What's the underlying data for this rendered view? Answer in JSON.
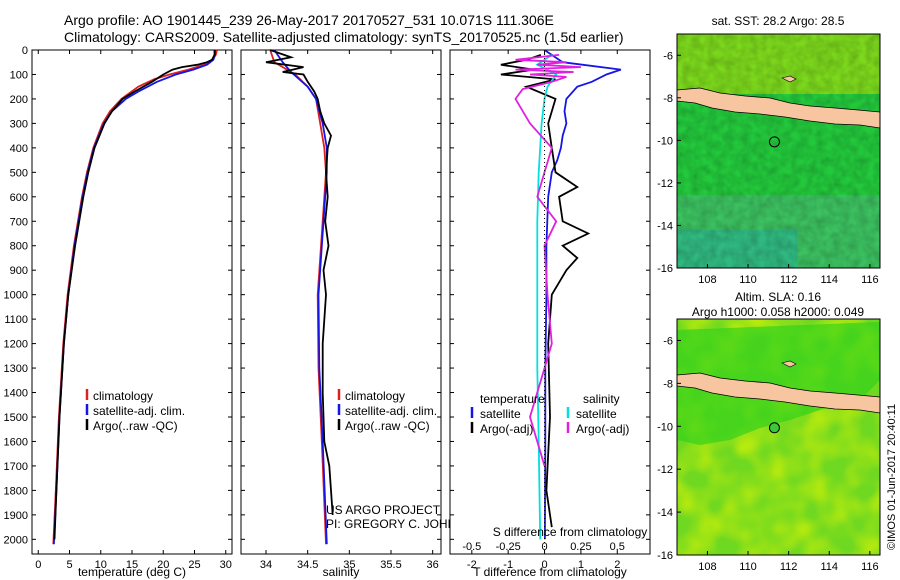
{
  "header": {
    "line1": "Argo profile: AO 1901445_239 26-May-2017 20170527_531 10.071S 111.306E",
    "line2": "Climatology: CARS2009. Satellite-adjusted climatology: synTS_20170525.nc (1.5d earlier)"
  },
  "colors": {
    "climatology": "#e02020",
    "satellite": "#1515e6",
    "argo": "#000000",
    "satellite_s": "#00e0e0",
    "argo_s": "#e020e0"
  },
  "chart_data": [
    {
      "type": "line",
      "xlabel": "temperature (deg C)",
      "ylabel": "",
      "xlim": [
        -1,
        31
      ],
      "ylim": [
        2060,
        0
      ],
      "y_inverted": true,
      "xticks": [
        0,
        5,
        10,
        15,
        20,
        25,
        30
      ],
      "yticks": [
        0,
        100,
        200,
        300,
        400,
        500,
        600,
        700,
        800,
        900,
        1000,
        1100,
        1200,
        1300,
        1400,
        1500,
        1600,
        1700,
        1800,
        1900,
        2000
      ],
      "legend": [
        "climatology",
        "satellite-adj. clim.",
        "Argo(..raw -QC)"
      ],
      "legend_placement": "lower-center",
      "series": [
        {
          "name": "climatology",
          "color": "#e02020",
          "y": [
            0,
            20,
            40,
            60,
            80,
            100,
            120,
            150,
            200,
            250,
            300,
            400,
            500,
            600,
            800,
            1000,
            1200,
            1500,
            1800,
            2020
          ],
          "x": [
            28.6,
            28.4,
            27.8,
            26.5,
            24,
            21,
            18.5,
            16,
            13.3,
            11.5,
            10.3,
            8.8,
            7.8,
            7.0,
            5.7,
            4.7,
            4.0,
            3.3,
            2.8,
            2.4
          ]
        },
        {
          "name": "satellite-adj. clim.",
          "color": "#1515e6",
          "y": [
            0,
            20,
            40,
            60,
            80,
            100,
            130,
            170,
            200,
            250,
            300,
            400,
            500,
            600,
            800,
            1000,
            1200,
            1500,
            1800,
            2020
          ],
          "x": [
            28.3,
            28.3,
            28.0,
            27.0,
            24.8,
            22,
            19,
            16,
            14,
            11.8,
            10.5,
            8.9,
            7.9,
            7.1,
            5.8,
            4.8,
            4.1,
            3.4,
            2.9,
            2.5
          ]
        },
        {
          "name": "Argo(..raw -QC)",
          "color": "#000000",
          "y": [
            0,
            20,
            40,
            50,
            60,
            70,
            80,
            100,
            130,
            170,
            200,
            250,
            300,
            400,
            500,
            600,
            800,
            1000,
            1200,
            1500,
            1800,
            2000
          ],
          "x": [
            28.2,
            28.2,
            27.8,
            27,
            25.5,
            23,
            21.5,
            20,
            18.2,
            15.4,
            13.5,
            11.8,
            10.6,
            9.0,
            8.0,
            7.2,
            5.9,
            4.8,
            4.1,
            3.4,
            2.9,
            2.6
          ]
        }
      ]
    },
    {
      "type": "line",
      "xlabel": "salinity",
      "xlim": [
        33.7,
        36.1
      ],
      "ylim": [
        2060,
        0
      ],
      "y_inverted": true,
      "xticks": [
        34,
        34.5,
        35,
        35.5,
        36
      ],
      "legend": [
        "climatology",
        "satellite-adj. clim.",
        "Argo(..raw -QC)"
      ],
      "legend_placement": "lower-right",
      "annotation": [
        "US ARGO PROJECT",
        "PI: GREGORY C. JOHNSON"
      ],
      "series": [
        {
          "name": "climatology",
          "color": "#e02020",
          "y": [
            0,
            50,
            100,
            150,
            200,
            300,
            400,
            500,
            700,
            1000,
            1300,
            1600,
            2020
          ],
          "x": [
            34.05,
            34.1,
            34.35,
            34.5,
            34.6,
            34.65,
            34.7,
            34.72,
            34.68,
            34.62,
            34.63,
            34.67,
            34.72
          ]
        },
        {
          "name": "satellite-adj. clim.",
          "color": "#1515e6",
          "y": [
            0,
            50,
            90,
            150,
            200,
            300,
            400,
            500,
            700,
            1000,
            1300,
            1600,
            2020
          ],
          "x": [
            34.1,
            34.2,
            34.3,
            34.5,
            34.6,
            34.68,
            34.73,
            34.73,
            34.69,
            34.63,
            34.64,
            34.68,
            34.73
          ]
        },
        {
          "name": "Argo(..raw -QC)",
          "color": "#000000",
          "y": [
            0,
            30,
            50,
            70,
            90,
            100,
            130,
            170,
            200,
            250,
            300,
            350,
            400,
            500,
            600,
            700,
            800,
            900,
            1000,
            1200,
            1400,
            1600,
            1700,
            1800,
            1900
          ],
          "x": [
            34.05,
            34.3,
            34.0,
            34.45,
            34.2,
            34.45,
            34.5,
            34.58,
            34.62,
            34.65,
            34.7,
            34.78,
            34.74,
            34.72,
            34.74,
            34.71,
            34.75,
            34.69,
            34.72,
            34.68,
            34.68,
            34.7,
            34.76,
            34.78,
            34.8
          ]
        }
      ]
    },
    {
      "type": "line",
      "xlabel": "T difference from climatology",
      "xlabel_top": "S difference from climatology",
      "xlim": [
        -2.6,
        2.9
      ],
      "ylim": [
        2060,
        0
      ],
      "y_inverted": true,
      "xticks": [
        -2,
        -1,
        0,
        1,
        2
      ],
      "xticks_s": [
        -0.5,
        -0.25,
        0,
        0.25,
        0.5
      ],
      "legend": [
        "temperature",
        "satellite",
        "Argo(-adj)",
        "salinity",
        "satellite",
        "Argo(-adj)"
      ],
      "series": [
        {
          "name": "T satellite",
          "color": "#1515e6",
          "y": [
            0,
            50,
            80,
            100,
            130,
            150,
            200,
            250,
            300,
            350,
            400,
            450,
            500,
            600,
            800,
            1000,
            1300,
            1600,
            2000
          ],
          "x": [
            0,
            0.5,
            2.1,
            1.7,
            1.3,
            0.9,
            0.6,
            0.55,
            0.6,
            0.5,
            0.45,
            0.35,
            0.2,
            0.1,
            0.05,
            0.05,
            0.02,
            0.02,
            0.01
          ]
        },
        {
          "name": "T Argo(-adj)",
          "color": "#000000",
          "y": [
            20,
            40,
            60,
            80,
            100,
            120,
            150,
            200,
            300,
            400,
            500,
            560,
            600,
            700,
            750,
            800,
            850,
            900,
            950,
            1000,
            1200,
            1500,
            1800,
            1950
          ],
          "x": [
            -0.1,
            -0.5,
            -1.2,
            -0.3,
            -1.2,
            0.3,
            -0.5,
            0.3,
            0.1,
            0.2,
            0.3,
            0.9,
            0.4,
            0.5,
            1.2,
            0.5,
            0.9,
            0.6,
            0.4,
            0.2,
            0.1,
            0.15,
            0.05,
            0.2
          ]
        },
        {
          "name": "S satellite",
          "color": "#00e0e0",
          "y": [
            20,
            60,
            100,
            150,
            200,
            300,
            400,
            500,
            700,
            1000,
            1300,
            1600,
            2000
          ],
          "x": [
            0.05,
            -0.05,
            0.08,
            0.02,
            0.0,
            -0.02,
            -0.03,
            -0.04,
            -0.05,
            -0.05,
            -0.05,
            -0.04,
            -0.03
          ]
        },
        {
          "name": "S Argo(-adj)",
          "color": "#e020e0",
          "y": [
            20,
            40,
            50,
            60,
            70,
            80,
            90,
            100,
            110,
            130,
            160,
            200,
            300,
            400,
            500,
            600,
            700,
            800,
            1000,
            1200,
            1500,
            1700
          ],
          "x": [
            0.1,
            -0.2,
            0.15,
            -0.05,
            0.25,
            -0.2,
            0.2,
            -0.1,
            0.15,
            0.05,
            -0.15,
            -0.2,
            -0.1,
            0.05,
            0.0,
            -0.05,
            0.08,
            0.0,
            0.02,
            0.05,
            -0.1,
            0.0
          ]
        }
      ]
    },
    {
      "type": "heatmap",
      "title": "sat. SST: 28.2 Argo: 28.5",
      "xlim": [
        106.5,
        116.5
      ],
      "ylim": [
        -16,
        -5
      ],
      "xticks": [
        108,
        110,
        112,
        114,
        116
      ],
      "yticks": [
        -6,
        -8,
        -10,
        -12,
        -14,
        -16
      ],
      "marker": {
        "lon": 111.3,
        "lat": -10.07
      }
    },
    {
      "type": "heatmap",
      "title": "Altim. SLA: 0.16",
      "subtitle": "Argo h1000: 0.058 h2000: 0.049",
      "xlim": [
        106.5,
        116.5
      ],
      "ylim": [
        -16,
        -5
      ],
      "xticks": [
        108,
        110,
        112,
        114,
        116
      ],
      "yticks": [
        -6,
        -8,
        -10,
        -12,
        -14,
        -16
      ],
      "marker": {
        "lon": 111.3,
        "lat": -10.07
      }
    }
  ],
  "footer": {
    "credit": "©IMOS 01-Jun-2017 20:40:11"
  }
}
